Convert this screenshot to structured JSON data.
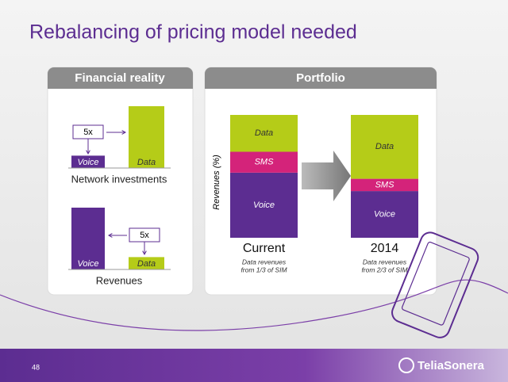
{
  "title": "Rebalancing of pricing model needed",
  "financial_reality": {
    "title": "Financial reality",
    "multiplier": "5x",
    "bar_labels": [
      "Voice",
      "Data"
    ],
    "colors": [
      "#5c2d91",
      "#b5cc18"
    ],
    "groups": [
      {
        "label": "Network investments",
        "values": [
          1,
          5
        ]
      },
      {
        "label": "Revenues",
        "values": [
          5,
          1
        ]
      }
    ]
  },
  "portfolio": {
    "title": "Portfolio",
    "y_label": "Revenues (%)",
    "segments": [
      "Voice",
      "SMS",
      "Data"
    ],
    "colors": [
      "#5c2d91",
      "#d4237a",
      "#b5cc18"
    ],
    "bars": [
      {
        "label": "Current",
        "note_lines": [
          "Data revenues",
          "from 1/3 of SIM"
        ],
        "values": [
          53,
          17,
          30
        ]
      },
      {
        "label": "2014",
        "note_lines": [
          "Data revenues",
          "from 2/3 of SIM"
        ],
        "values": [
          38,
          10,
          52
        ]
      }
    ]
  },
  "footer": {
    "page": "48",
    "brand": "TeliaSonera"
  }
}
